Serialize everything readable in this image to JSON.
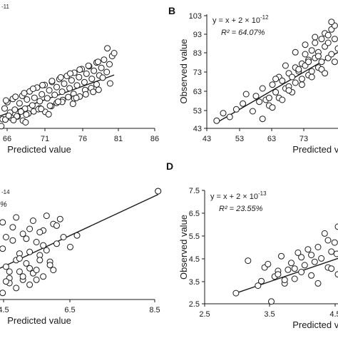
{
  "chart_data": [
    {
      "panel": "A",
      "type": "scatter",
      "show_letter": false,
      "equation_fragment": "-11",
      "xlabel": "Predicted value",
      "ylabel": "",
      "xlim": [
        61,
        86
      ],
      "ylim": [
        58,
        105
      ],
      "x_ticks": [
        "66",
        "71",
        "76",
        "81",
        "86"
      ],
      "fit_line": {
        "x": [
          61,
          80
        ],
        "y": [
          61,
          80
        ]
      },
      "points": {
        "x": [
          61.2,
          61.6,
          62.0,
          62.5,
          62.8,
          63.1,
          63.5,
          63.8,
          64.2,
          64.6,
          65.0,
          65.3,
          65.7,
          66.0,
          66.4,
          66.8,
          67.1,
          67.5,
          67.9,
          68.2,
          68.6,
          69.0,
          69.3,
          69.7,
          70.1,
          70.4,
          70.8,
          71.2,
          71.5,
          71.9,
          72.3,
          72.6,
          73.0,
          73.4,
          73.7,
          74.1,
          74.5,
          74.8,
          75.2,
          75.6,
          75.9,
          76.3,
          76.7,
          77.0,
          77.4,
          77.8,
          78.1,
          78.5,
          78.9,
          79.3,
          79.7,
          80.0,
          61.4,
          62.2,
          63.0,
          63.9,
          64.8,
          65.6,
          66.5,
          67.3,
          68.1,
          69.0,
          69.8,
          70.7,
          71.5,
          72.4,
          73.2,
          74.0,
          74.9,
          75.7,
          76.6,
          77.4,
          78.3,
          62.6,
          64.0,
          65.4,
          66.7,
          68.0,
          69.4,
          70.8,
          72.1,
          73.5,
          74.9,
          76.2,
          77.6,
          79.0,
          63.3,
          65.1,
          67.0,
          68.8,
          70.5,
          72.3,
          74.1,
          75.8,
          77.7,
          61.8,
          64.4,
          66.2,
          69.2,
          71.7,
          74.4,
          76.9,
          79.4,
          62.9,
          66.9,
          70.3,
          73.9
        ],
        "y": [
          63.5,
          60.8,
          65.1,
          62.0,
          67.4,
          63.9,
          61.8,
          66.2,
          68.8,
          64.5,
          70.1,
          65.7,
          62.9,
          68.3,
          71.4,
          66.1,
          69.9,
          73.2,
          67.5,
          70.6,
          74.8,
          69.2,
          72.0,
          75.9,
          70.4,
          73.7,
          77.1,
          71.8,
          75.0,
          78.3,
          73.1,
          76.4,
          79.6,
          74.5,
          77.8,
          80.9,
          75.7,
          79.1,
          82.4,
          77.0,
          80.5,
          83.6,
          78.4,
          81.7,
          85.1,
          79.8,
          82.9,
          86.3,
          81.2,
          84.4,
          87.8,
          89.0,
          59.8,
          60.2,
          59.5,
          61.6,
          62.3,
          63.0,
          61.2,
          64.1,
          65.0,
          66.3,
          64.8,
          67.2,
          68.5,
          69.7,
          70.9,
          72.2,
          71.1,
          73.8,
          74.6,
          76.1,
          78.9,
          66.8,
          69.5,
          71.0,
          72.5,
          74.3,
          75.8,
          77.5,
          79.0,
          80.6,
          82.2,
          83.8,
          85.4,
          91.0,
          58.9,
          61.4,
          63.7,
          65.9,
          67.3,
          68.9,
          70.3,
          72.0,
          73.9,
          62.4,
          63.2,
          64.9,
          66.0,
          69.0,
          70.5,
          73.0,
          76.5,
          65.8,
          60.5,
          63.8,
          68.1
        ]
      }
    },
    {
      "panel": "B",
      "type": "scatter",
      "show_letter": true,
      "equation_prefix": "y = x + 2 × 10",
      "equation_exp": "-12",
      "r2_label": "R² = 64.07%",
      "xlabel": "Predicted value",
      "ylabel": "Observed value",
      "xlim": [
        43,
        83
      ],
      "ylim": [
        43,
        103
      ],
      "x_ticks": [
        "43",
        "53",
        "63",
        "73"
      ],
      "y_ticks": [
        "43",
        "53",
        "63",
        "73",
        "83",
        "93",
        "103"
      ],
      "fit_line": {
        "x": [
          46,
          83
        ],
        "y": [
          46,
          83
        ]
      },
      "points": {
        "x": [
          46,
          48,
          50,
          52,
          54,
          55,
          57,
          58,
          59,
          60,
          61,
          62,
          63,
          64,
          65,
          65,
          66,
          67,
          68,
          68,
          69,
          70,
          70,
          71,
          72,
          72,
          73,
          73,
          74,
          74,
          75,
          75,
          76,
          76,
          77,
          77,
          78,
          78,
          79,
          79,
          80,
          80,
          81,
          81,
          82,
          82,
          83,
          60,
          63,
          66,
          69,
          72,
          75,
          78,
          81,
          67,
          70,
          73,
          76,
          79,
          82,
          62,
          64,
          68,
          71,
          74,
          77,
          80
        ],
        "y": [
          47,
          51,
          49,
          53,
          56,
          61,
          52,
          60,
          57,
          64,
          58,
          55,
          66,
          62,
          70,
          59,
          68,
          64,
          72,
          65,
          70,
          75,
          67,
          73,
          77,
          69,
          76,
          82,
          71,
          79,
          84,
          73,
          80,
          88,
          75,
          83,
          90,
          78,
          86,
          93,
          80,
          88,
          95,
          82,
          90,
          97,
          85,
          48,
          54,
          58,
          62,
          66,
          70,
          74,
          99,
          76,
          83,
          87,
          91,
          72,
          78,
          59,
          69,
          63,
          74,
          78,
          81,
          92
        ]
      }
    },
    {
      "panel": "C",
      "type": "scatter",
      "show_letter": false,
      "equation_fragment": "-14",
      "r2_fragment": "%",
      "xlabel": "Predicted value",
      "ylabel": "",
      "xlim": [
        3.5,
        8.5
      ],
      "ylim": [
        2.2,
        9.5
      ],
      "x_ticks": [
        "4.5",
        "6.5",
        "8.5"
      ],
      "fit_line": {
        "x": [
          3.5,
          8.6
        ],
        "y": [
          3.7,
          8.6
        ]
      },
      "points": {
        "x": [
          3.6,
          3.7,
          3.8,
          3.9,
          4.0,
          4.1,
          4.2,
          4.3,
          4.4,
          4.5,
          4.6,
          4.7,
          4.8,
          4.9,
          5.0,
          5.1,
          5.2,
          5.3,
          5.4,
          5.5,
          5.6,
          5.7,
          5.8,
          6.0,
          6.2,
          3.6,
          3.8,
          4.0,
          4.2,
          4.4,
          4.6,
          4.8,
          5.0,
          5.2,
          5.4,
          3.7,
          3.9,
          4.1,
          4.3,
          4.5,
          4.7,
          4.9,
          5.1,
          5.3,
          3.6,
          3.9,
          4.2,
          4.5,
          4.8,
          5.1,
          4.0,
          4.4,
          4.8,
          5.2,
          5.6,
          8.6,
          4.1,
          4.6,
          5.0,
          5.5
        ],
        "y": [
          4.1,
          3.3,
          4.8,
          3.7,
          5.3,
          4.2,
          3.5,
          5.8,
          4.6,
          3.9,
          6.2,
          4.4,
          5.1,
          3.8,
          5.7,
          4.9,
          6.4,
          5.2,
          4.5,
          6.8,
          5.6,
          7.1,
          6.0,
          5.4,
          6.1,
          2.8,
          3.0,
          2.6,
          3.2,
          2.9,
          3.4,
          3.1,
          4.0,
          3.6,
          4.3,
          4.9,
          5.5,
          6.0,
          6.6,
          5.0,
          5.9,
          7.0,
          6.3,
          7.3,
          3.7,
          4.4,
          3.9,
          4.7,
          4.1,
          4.6,
          6.9,
          7.2,
          6.5,
          5.5,
          6.7,
          8.8,
          3.3,
          3.6,
          3.4,
          4.0
        ]
      }
    },
    {
      "panel": "D",
      "type": "scatter",
      "show_letter": true,
      "equation_prefix": "y = x + 2 × 10",
      "equation_exp": "-13",
      "r2_label": "R² = 23.55%",
      "xlabel": "Predicted value",
      "ylabel": "Observed value",
      "xlim": [
        2.5,
        4.5
      ],
      "ylim": [
        2.5,
        7.5
      ],
      "x_ticks": [
        "2.5",
        "3.5",
        "4.5"
      ],
      "y_ticks": [
        "2.5",
        "3.5",
        "4.5",
        "5.5",
        "6.5",
        "7.5"
      ],
      "fit_line": {
        "x": [
          2.97,
          4.6
        ],
        "y": [
          2.97,
          4.6
        ]
      },
      "points": {
        "x": [
          2.97,
          3.15,
          3.3,
          3.35,
          3.4,
          3.5,
          3.55,
          3.6,
          3.65,
          3.7,
          3.75,
          3.8,
          3.85,
          3.9,
          3.95,
          4.0,
          4.05,
          4.1,
          4.15,
          4.2,
          4.25,
          4.3,
          4.35,
          4.4,
          4.45,
          4.5,
          4.5,
          4.55,
          4.55,
          4.6,
          3.45,
          3.7,
          3.95,
          4.2,
          4.4,
          4.48,
          4.52,
          4.56,
          4.58,
          4.6,
          4.35,
          4.1,
          3.85,
          3.6
        ],
        "y": [
          2.97,
          4.4,
          3.3,
          3.5,
          4.1,
          2.6,
          3.7,
          3.95,
          4.6,
          3.4,
          4.0,
          4.3,
          3.6,
          4.75,
          3.9,
          4.2,
          4.9,
          3.75,
          4.35,
          5.0,
          4.5,
          5.6,
          4.1,
          4.8,
          5.2,
          5.9,
          3.8,
          4.6,
          5.4,
          5.0,
          4.25,
          3.55,
          4.55,
          3.4,
          4.05,
          4.7,
          5.75,
          4.3,
          3.95,
          5.6,
          5.3,
          4.65,
          4.05,
          3.8
        ]
      }
    }
  ]
}
